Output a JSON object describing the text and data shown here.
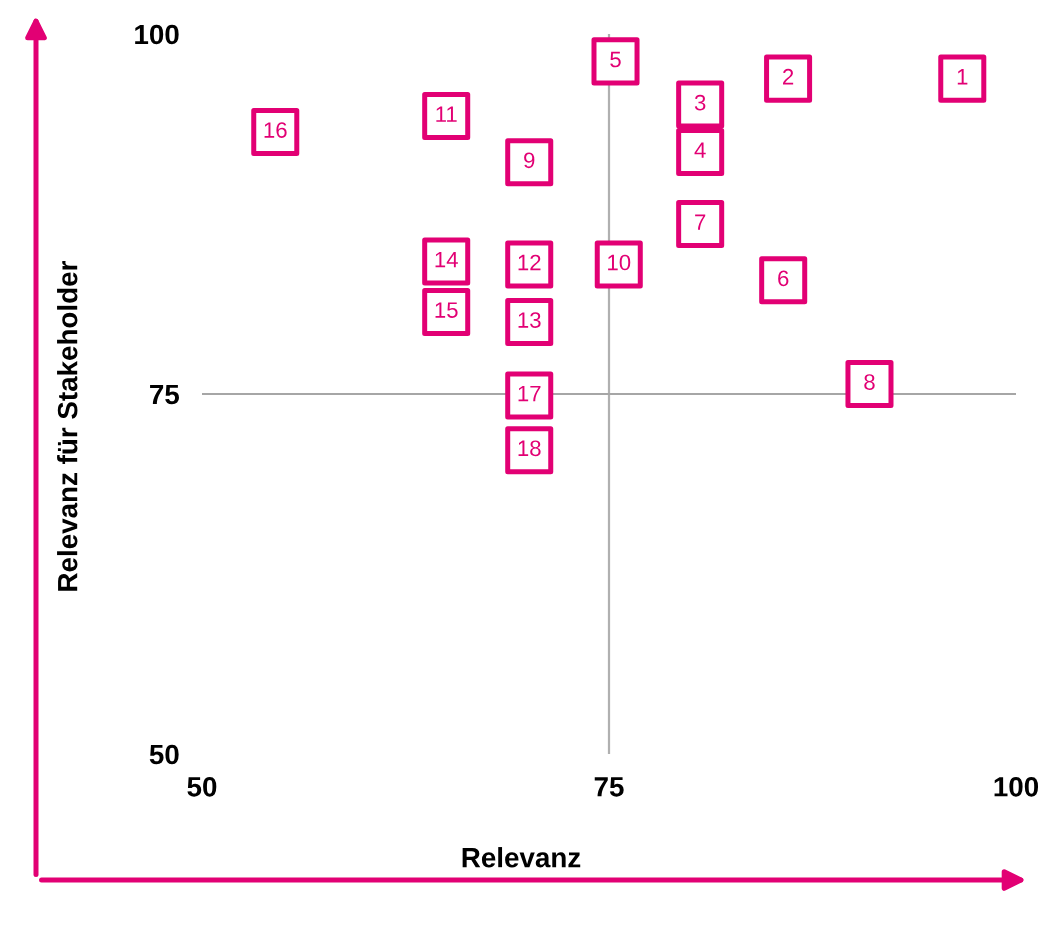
{
  "chart_data": {
    "type": "scatter",
    "xlabel": "Relevanz",
    "ylabel": "Relevanz für Stakeholder",
    "x": [
      96.7,
      86.0,
      80.6,
      80.6,
      75.4,
      85.7,
      80.6,
      91.0,
      70.1,
      75.6,
      65.0,
      70.1,
      70.1,
      65.0,
      65.0,
      54.5,
      70.1,
      70.1
    ],
    "series": [
      {
        "color": "#e20074",
        "values": [
          96.9,
          96.9,
          95.1,
          91.8,
          98.1,
          82.9,
          86.8,
          75.7,
          91.1,
          84.0,
          94.3,
          84.0,
          80.0,
          84.2,
          80.7,
          93.2,
          74.9,
          71.1
        ]
      }
    ],
    "annotations": [
      {
        "text": "1",
        "x": 96.7,
        "y": 96.9
      },
      {
        "text": "2",
        "x": 86.0,
        "y": 96.9
      },
      {
        "text": "3",
        "x": 80.6,
        "y": 95.1
      },
      {
        "text": "4",
        "x": 80.6,
        "y": 91.8
      },
      {
        "text": "5",
        "x": 75.4,
        "y": 98.1
      },
      {
        "text": "6",
        "x": 85.7,
        "y": 82.9
      },
      {
        "text": "7",
        "x": 80.6,
        "y": 86.8
      },
      {
        "text": "8",
        "x": 91.0,
        "y": 75.7
      },
      {
        "text": "9",
        "x": 70.1,
        "y": 91.1
      },
      {
        "text": "10",
        "x": 75.6,
        "y": 84.0
      },
      {
        "text": "11",
        "x": 65.0,
        "y": 94.3
      },
      {
        "text": "12",
        "x": 70.1,
        "y": 84.0
      },
      {
        "text": "13",
        "x": 70.1,
        "y": 80.0
      },
      {
        "text": "14",
        "x": 65.0,
        "y": 84.2
      },
      {
        "text": "15",
        "x": 65.0,
        "y": 80.7
      },
      {
        "text": "16",
        "x": 54.5,
        "y": 93.2
      },
      {
        "text": "17",
        "x": 70.1,
        "y": 74.9
      },
      {
        "text": "18",
        "x": 70.1,
        "y": 71.1
      }
    ],
    "ref_lines": [
      {
        "axis": "x",
        "value": 75,
        "color": "#b0b0b0"
      },
      {
        "axis": "y",
        "value": 75,
        "color": "#a6a6a6"
      }
    ],
    "xlim": [
      50,
      100
    ],
    "ylim": [
      50,
      100
    ],
    "xticks": [
      50,
      75,
      100
    ],
    "yticks": [
      50,
      75,
      100
    ],
    "marker": "square",
    "grid": false,
    "legend": false
  }
}
